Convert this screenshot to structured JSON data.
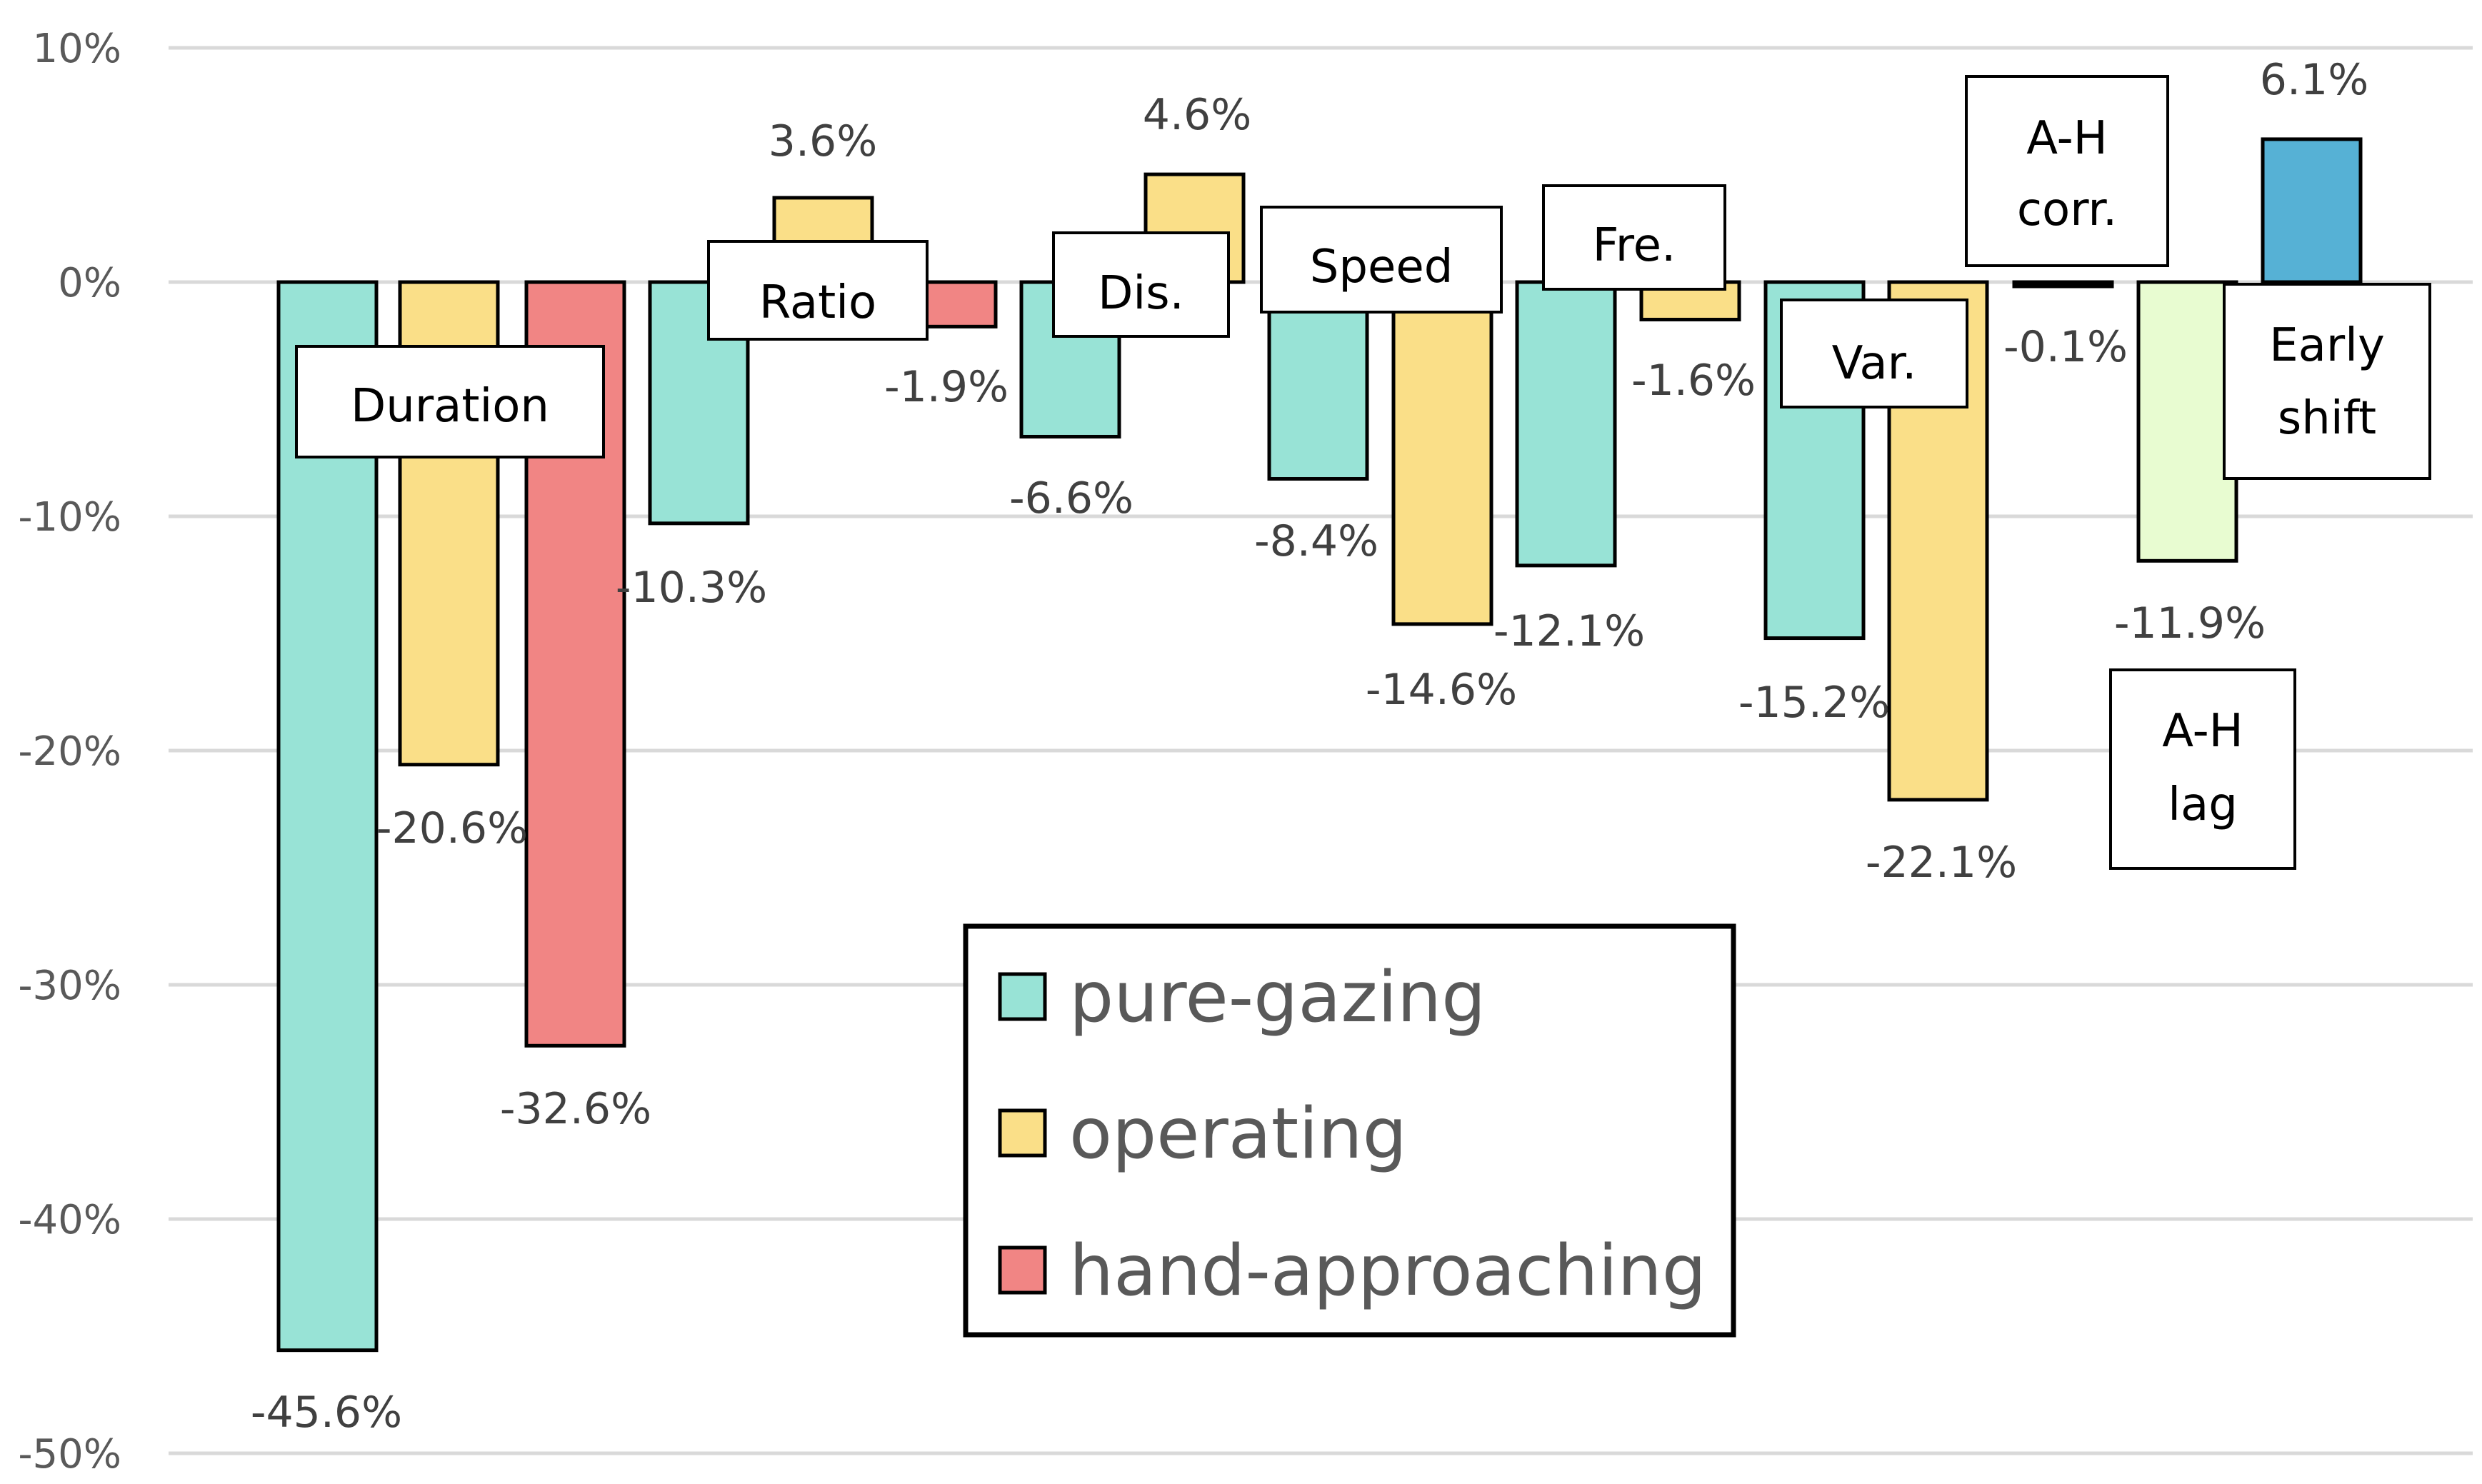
{
  "chart_data": {
    "type": "bar",
    "title": "",
    "xlabel": "",
    "ylabel": "",
    "ylim": [
      -50,
      10
    ],
    "y_ticks": [
      "10%",
      "0%",
      "-10%",
      "-20%",
      "-30%",
      "-40%",
      "-50%"
    ],
    "grid": true,
    "legend": {
      "placement": "bottom-center",
      "entries": [
        {
          "name": "pure-gazing",
          "color": "#98E3D6"
        },
        {
          "name": "operating",
          "color": "#FADF88"
        },
        {
          "name": "hand-approaching",
          "color": "#F18584"
        }
      ]
    },
    "colors": {
      "pure_gazing": "#98E3D6",
      "operating": "#FADF88",
      "hand_approaching": "#F18584",
      "corr": "#000000",
      "lag": "#E8FCD1",
      "shift": "#56B1D5",
      "grid": "#D9D9D9",
      "edge": "#000000"
    },
    "bars": [
      {
        "group": "Duration",
        "series": "pure-gazing",
        "value": -45.6,
        "label": "-45.6%",
        "color": "#98E3D6"
      },
      {
        "group": "Duration",
        "series": "operating",
        "value": -20.6,
        "label": "-20.6%",
        "color": "#FADF88"
      },
      {
        "group": "Duration",
        "series": "hand-approaching",
        "value": -32.6,
        "label": "-32.6%",
        "color": "#F18584"
      },
      {
        "group": "Ratio",
        "series": "pure-gazing",
        "value": -10.3,
        "label": "-10.3%",
        "color": "#98E3D6"
      },
      {
        "group": "Ratio",
        "series": "operating",
        "value": 3.6,
        "label": "3.6%",
        "color": "#FADF88"
      },
      {
        "group": "Ratio",
        "series": "hand-approaching",
        "value": -1.9,
        "label": "-1.9%",
        "color": "#F18584"
      },
      {
        "group": "Dis.",
        "series": "pure-gazing",
        "value": -6.6,
        "label": "-6.6%",
        "color": "#98E3D6"
      },
      {
        "group": "Dis.",
        "series": "operating",
        "value": 4.6,
        "label": "4.6%",
        "color": "#FADF88"
      },
      {
        "group": "Speed",
        "series": "pure-gazing",
        "value": -8.4,
        "label": "-8.4%",
        "color": "#98E3D6"
      },
      {
        "group": "Speed",
        "series": "operating",
        "value": -14.6,
        "label": "-14.6%",
        "color": "#FADF88"
      },
      {
        "group": "Fre.",
        "series": "pure-gazing",
        "value": -12.1,
        "label": "-12.1%",
        "color": "#98E3D6"
      },
      {
        "group": "Fre.",
        "series": "operating",
        "value": -1.6,
        "label": "-1.6%",
        "color": "#FADF88"
      },
      {
        "group": "Var.",
        "series": "pure-gazing",
        "value": -15.2,
        "label": "-15.2%",
        "color": "#98E3D6"
      },
      {
        "group": "Var.",
        "series": "operating",
        "value": -22.1,
        "label": "-22.1%",
        "color": "#FADF88"
      },
      {
        "group": "A-H corr.",
        "series": "A-H corr.",
        "value": -0.1,
        "label": "-0.1%",
        "color": "#000000"
      },
      {
        "group": "A-H lag",
        "series": "A-H lag",
        "value": -11.9,
        "label": "-11.9%",
        "color": "#E8FCD1"
      },
      {
        "group": "Early shift",
        "series": "Early shift",
        "value": 6.1,
        "label": "6.1%",
        "color": "#56B1D5"
      }
    ],
    "category_labels": [
      {
        "lines": [
          "Duration"
        ]
      },
      {
        "lines": [
          "Ratio"
        ]
      },
      {
        "lines": [
          "Dis."
        ]
      },
      {
        "lines": [
          "Speed"
        ]
      },
      {
        "lines": [
          "Fre."
        ]
      },
      {
        "lines": [
          "Var."
        ]
      },
      {
        "lines": [
          "A-H",
          "corr."
        ]
      },
      {
        "lines": [
          "A-H",
          "lag"
        ]
      },
      {
        "lines": [
          "Early",
          "shift"
        ]
      }
    ]
  }
}
